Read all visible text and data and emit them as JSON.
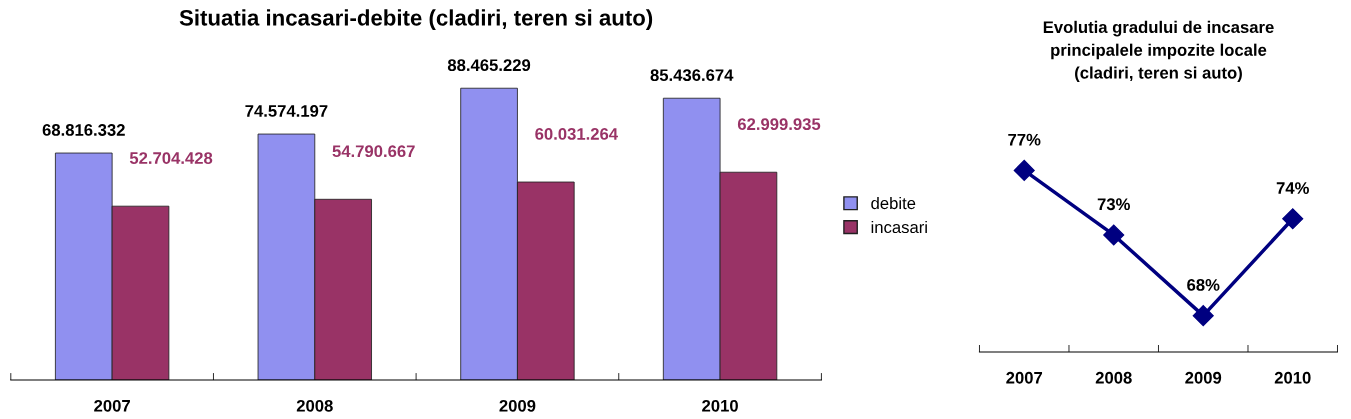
{
  "chart_data": [
    {
      "type": "bar",
      "title": "Situatia incasari-debite (cladiri, teren si auto)",
      "categories": [
        "2007",
        "2008",
        "2009",
        "2010"
      ],
      "series": [
        {
          "name": "debite",
          "color": "#9090f0",
          "values": [
            68816332,
            74574197,
            88465229,
            85436674
          ],
          "value_labels": [
            "68.816.332",
            "74.574.197",
            "88.465.229",
            "85.436.674"
          ]
        },
        {
          "name": "incasari",
          "color": "#993366",
          "values": [
            52704428,
            54790667,
            60031264,
            62999935
          ],
          "value_labels": [
            "52.704.428",
            "54.790.667",
            "60.031.264",
            "62.999.935"
          ]
        }
      ],
      "tick_labels": "x",
      "legend": "right",
      "grid": false
    },
    {
      "type": "line",
      "title": "Evolutia gradului de incasare\nprincipalele impozite locale\n(cladiri, teren si auto)",
      "categories": [
        "2007",
        "2008",
        "2009",
        "2010"
      ],
      "series": [
        {
          "color": "#000080",
          "values": [
            77,
            73,
            68,
            74
          ],
          "value_labels": [
            "77%",
            "73%",
            "68%",
            "74%"
          ]
        }
      ],
      "tick_labels": "x",
      "marker": "diamond",
      "grid": false,
      "legend": false
    }
  ]
}
